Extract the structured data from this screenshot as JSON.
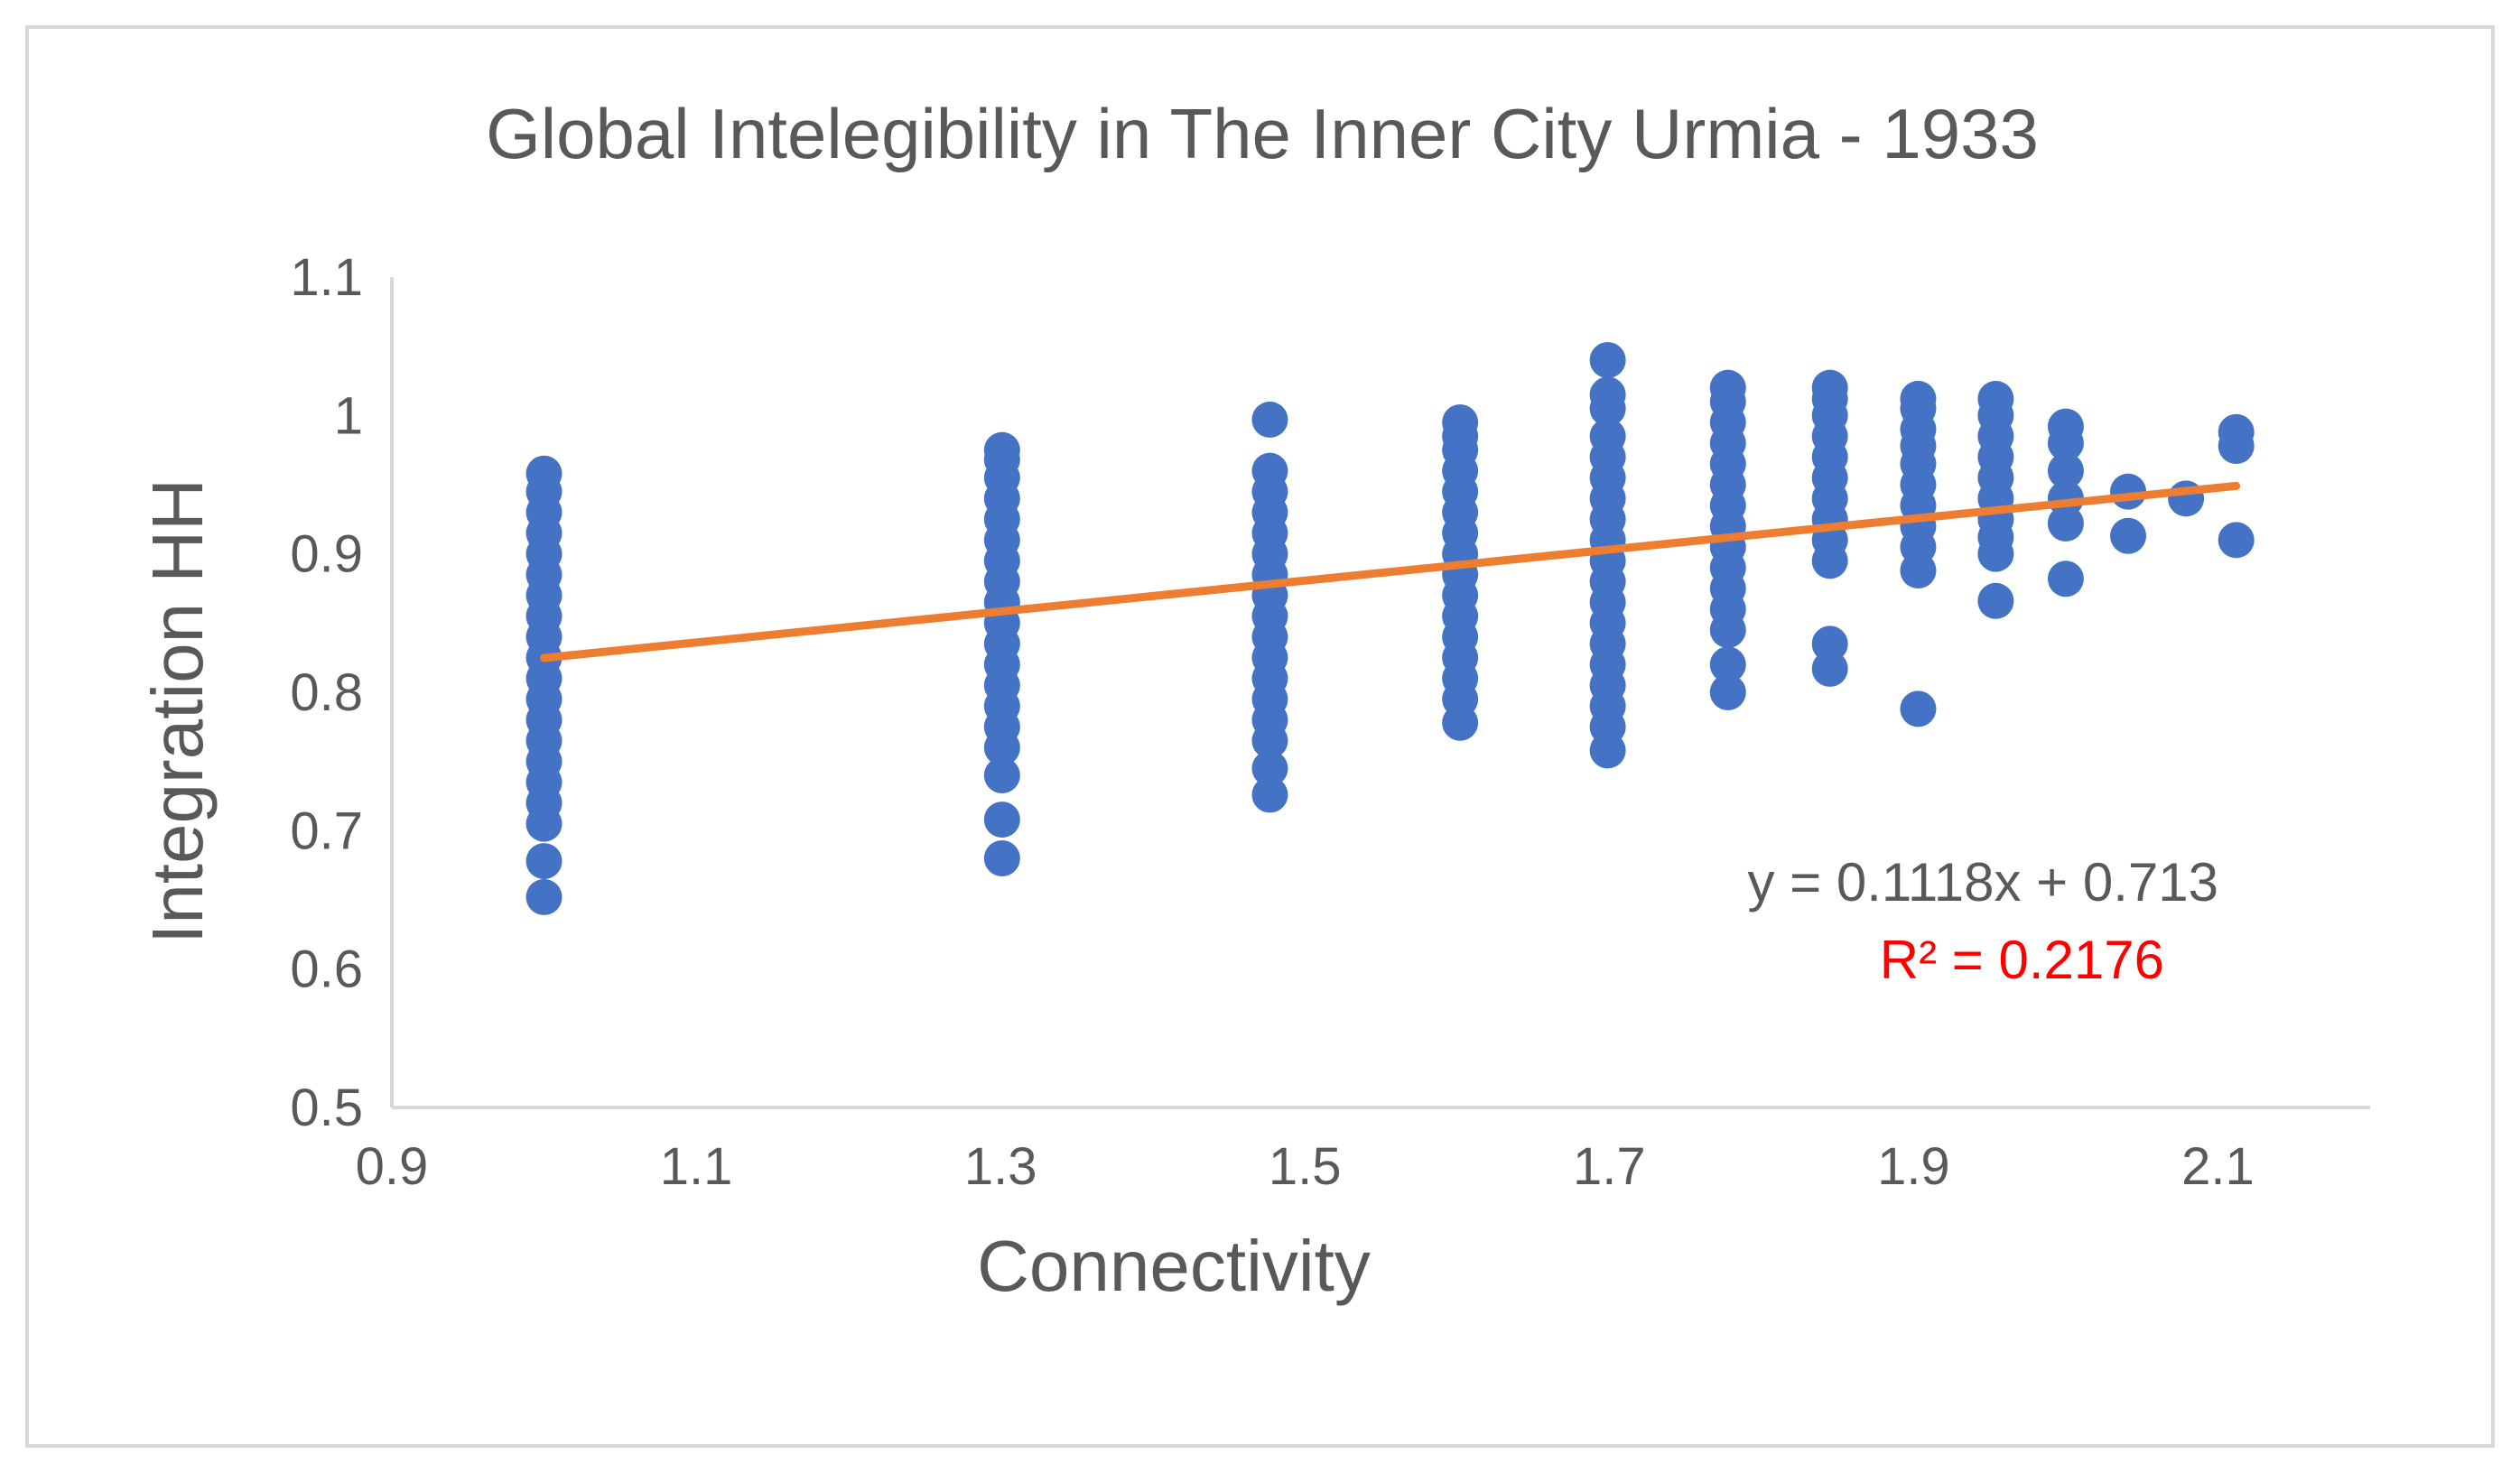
{
  "chart_data": {
    "type": "scatter",
    "title": "Global Intelegibility in The Inner City Urmia - 1933",
    "xlabel": "Connectivity",
    "ylabel": "Integration HH",
    "xlim": [
      0.9,
      2.2
    ],
    "ylim": [
      0.5,
      1.1
    ],
    "xticks": [
      "0.9",
      "1.1",
      "1.3",
      "1.5",
      "1.7",
      "1.9",
      "2.1"
    ],
    "yticks": [
      "0.5",
      "0.6",
      "0.7",
      "0.8",
      "0.9",
      "1",
      "1.1"
    ],
    "grid": false,
    "colors": {
      "points": "#4472c4",
      "trendline": "#ed7d31",
      "axis": "#d9d9d9",
      "text": "#595959",
      "r2": "#ff0000"
    },
    "trendline": {
      "slope": 0.1118,
      "intercept": 0.713,
      "x_range": [
        1.0,
        2.112
      ]
    },
    "equation_label": "y = 0.1118x + 0.713",
    "r2_label": "R² = 0.2176",
    "series": [
      {
        "x": 1.0,
        "y": [
          0.652,
          0.678,
          0.705,
          0.72,
          0.735,
          0.75,
          0.765,
          0.78,
          0.795,
          0.81,
          0.825,
          0.84,
          0.855,
          0.87,
          0.885,
          0.9,
          0.915,
          0.93,
          0.945,
          0.958
        ]
      },
      {
        "x": 1.301,
        "y": [
          0.68,
          0.708,
          0.74,
          0.76,
          0.775,
          0.79,
          0.805,
          0.82,
          0.835,
          0.85,
          0.865,
          0.88,
          0.895,
          0.91,
          0.925,
          0.94,
          0.955,
          0.968,
          0.975
        ]
      },
      {
        "x": 1.477,
        "y": [
          0.726,
          0.745,
          0.765,
          0.78,
          0.795,
          0.81,
          0.825,
          0.84,
          0.855,
          0.87,
          0.885,
          0.9,
          0.915,
          0.93,
          0.945,
          0.96,
          0.997
        ]
      },
      {
        "x": 1.602,
        "y": [
          0.778,
          0.795,
          0.81,
          0.825,
          0.84,
          0.855,
          0.87,
          0.885,
          0.9,
          0.915,
          0.93,
          0.945,
          0.96,
          0.975,
          0.985,
          0.995
        ]
      },
      {
        "x": 1.699,
        "y": [
          0.758,
          0.775,
          0.79,
          0.805,
          0.82,
          0.835,
          0.85,
          0.865,
          0.88,
          0.895,
          0.91,
          0.925,
          0.94,
          0.955,
          0.97,
          0.985,
          1.005,
          1.015,
          1.04
        ]
      },
      {
        "x": 1.778,
        "y": [
          0.8,
          0.82,
          0.845,
          0.86,
          0.875,
          0.89,
          0.905,
          0.92,
          0.935,
          0.95,
          0.965,
          0.98,
          0.995,
          1.01,
          1.02
        ]
      },
      {
        "x": 1.845,
        "y": [
          0.817,
          0.835,
          0.895,
          0.91,
          0.925,
          0.94,
          0.955,
          0.97,
          0.985,
          1.0,
          1.012,
          1.02
        ]
      },
      {
        "x": 1.903,
        "y": [
          0.788,
          0.888,
          0.905,
          0.92,
          0.935,
          0.95,
          0.965,
          0.978,
          0.99,
          1.005,
          1.012
        ]
      },
      {
        "x": 1.954,
        "y": [
          0.866,
          0.9,
          0.912,
          0.925,
          0.94,
          0.955,
          0.97,
          0.985,
          1.0,
          1.012
        ]
      },
      {
        "x": 2.0,
        "y": [
          0.882,
          0.922,
          0.94,
          0.96,
          0.98,
          0.992
        ]
      },
      {
        "x": 2.041,
        "y": [
          0.913,
          0.945
        ]
      },
      {
        "x": 2.079,
        "y": [
          0.94
        ]
      },
      {
        "x": 2.112,
        "y": [
          0.91,
          0.978,
          0.988
        ]
      }
    ]
  }
}
